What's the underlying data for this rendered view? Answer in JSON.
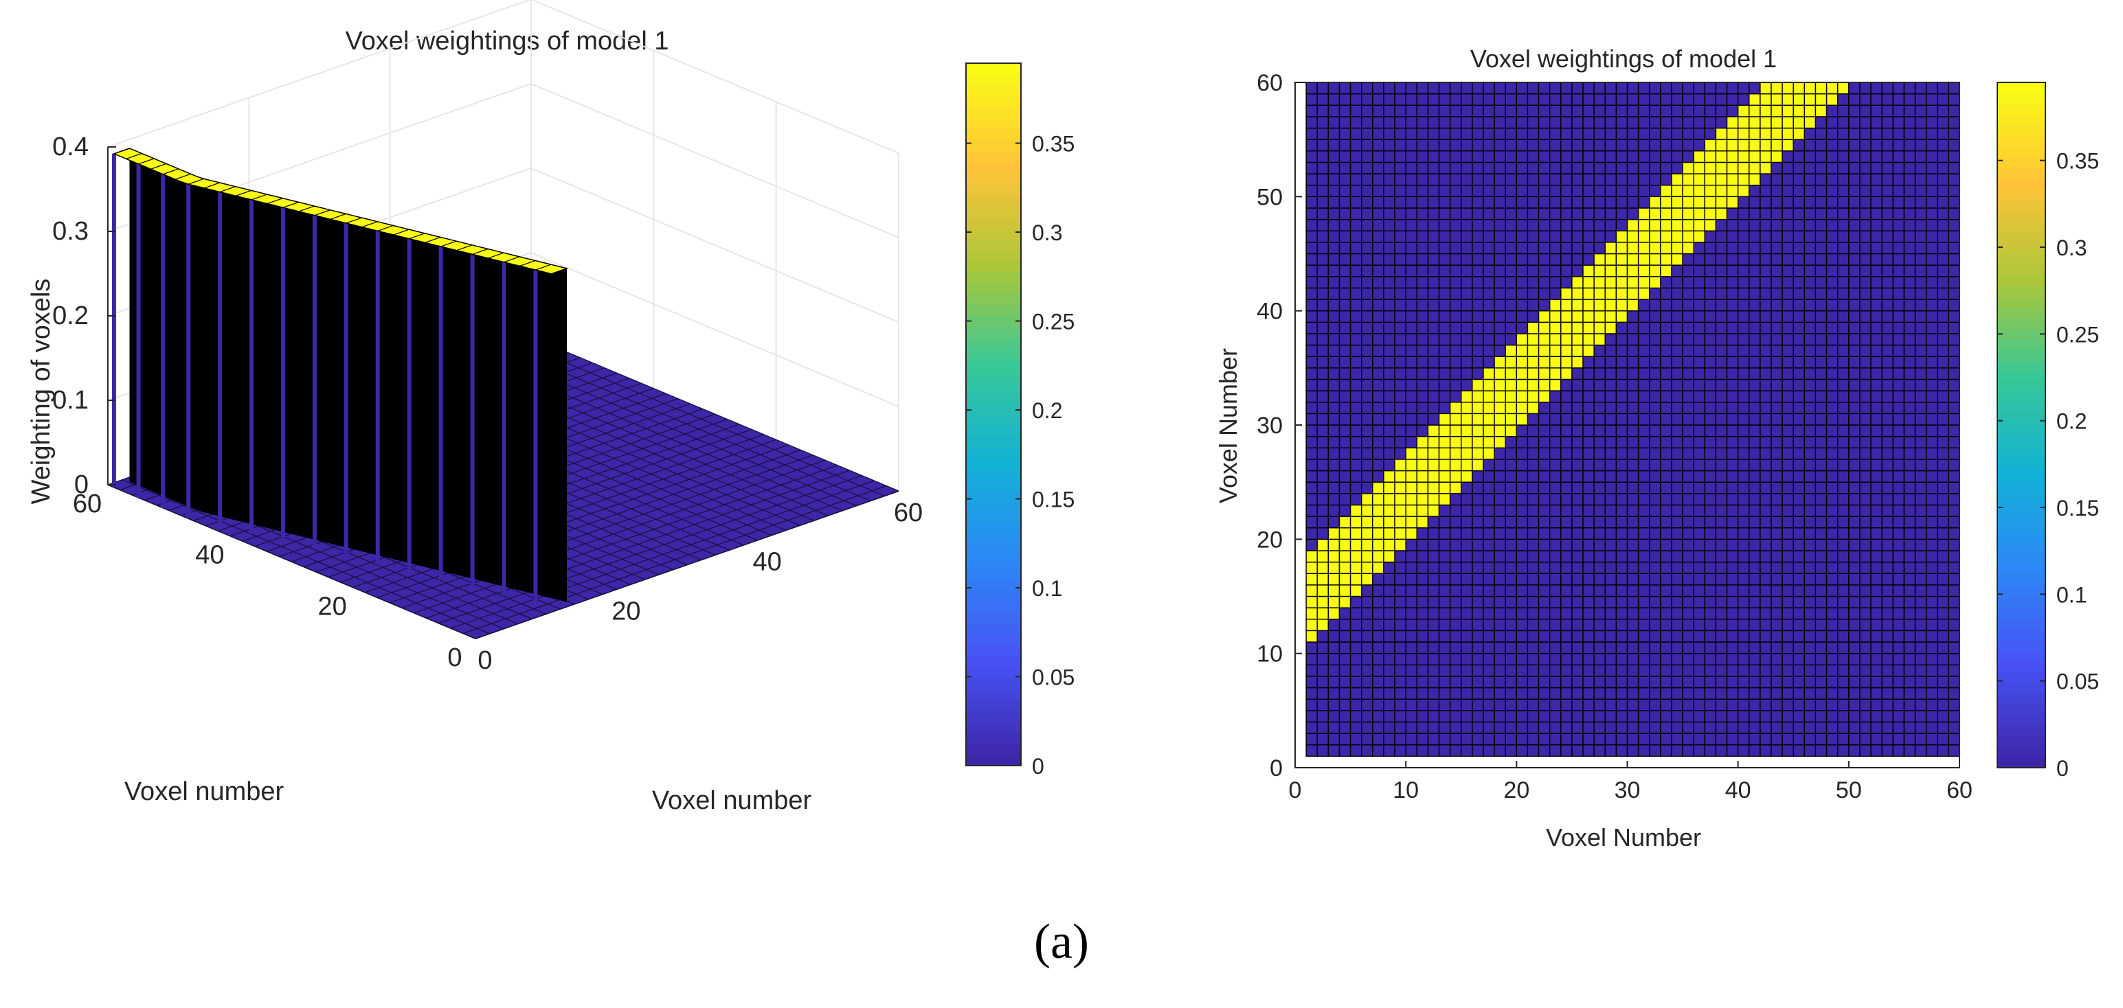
{
  "chart_data": [
    {
      "type": "surface3d",
      "title": "Voxel weightings of model 1",
      "xlabel": "Voxel number",
      "ylabel": "Voxel number",
      "zlabel": "Weighting of voxels",
      "xlim": [
        0,
        60
      ],
      "ylim": [
        0,
        60
      ],
      "zlim": [
        0,
        0.4
      ],
      "x_ticks": [
        "0",
        "20",
        "40",
        "60"
      ],
      "y_ticks": [
        "0",
        "20",
        "40",
        "60"
      ],
      "z_ticks": [
        "0",
        "0.1",
        "0.2",
        "0.3",
        "0.4"
      ],
      "band": {
        "start_x": 16.5,
        "slope": 0.7,
        "width": 8,
        "value": 0.395
      },
      "colorbar": {
        "min": 0,
        "max": 0.395,
        "ticks": [
          "0",
          "0.05",
          "0.1",
          "0.15",
          "0.2",
          "0.25",
          "0.3",
          "0.35"
        ]
      }
    },
    {
      "type": "heatmap",
      "title": "Voxel weightings of model 1",
      "xlabel": "Voxel Number",
      "ylabel": "Voxel Number",
      "xlim": [
        0,
        60
      ],
      "ylim": [
        0,
        60
      ],
      "x_ticks": [
        "0",
        "10",
        "20",
        "30",
        "40",
        "50",
        "60"
      ],
      "y_ticks": [
        "0",
        "10",
        "20",
        "30",
        "40",
        "50",
        "60"
      ],
      "band": {
        "start_y": 16.5,
        "slope": 1.0,
        "width": 7.5,
        "value": 0.395
      },
      "colorbar": {
        "min": 0,
        "max": 0.395,
        "ticks": [
          "0",
          "0.05",
          "0.1",
          "0.15",
          "0.2",
          "0.25",
          "0.3",
          "0.35"
        ]
      }
    }
  ],
  "caption": "(a)",
  "colors": {
    "low": "#3e26a8",
    "high": "#f9fb0e",
    "grid": "#000000",
    "axis": "#262626"
  }
}
